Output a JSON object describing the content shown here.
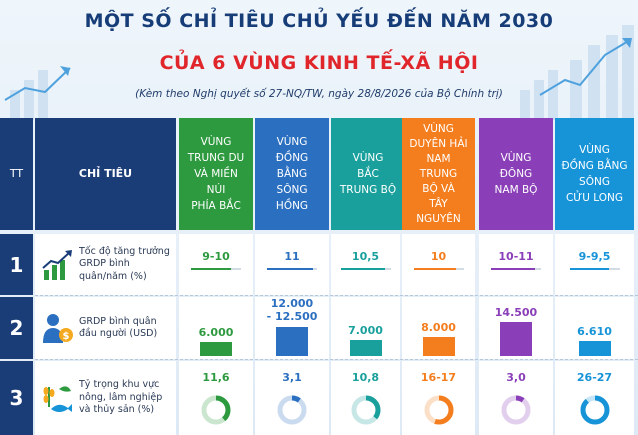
{
  "title_line1": "MỘT SỐ CHỈ TIÊU CHỦ YẾU ĐẾN NĂM 2030",
  "title_line2": "CỦA 6 VÙNG KINH TẾ-XÃ HỘI",
  "subtitle": "(Kèm theo Nghị quyết số 27-NQ/TW, ngày 28/8/2026 của Bộ Chính trị)",
  "header": {
    "tt": "TT",
    "chi_tieu": "CHỈ TIÊU"
  },
  "regions": [
    {
      "name": "Vùng Trung du và miền núi phía Bắc",
      "label": "VÙNG TRUNG DU VÀ MIỀN NÚI PHÍA BẮC",
      "color": "#2e9a3f",
      "line1": "VÙNG",
      "line2": "TRUNG DU",
      "line3": "VÀ MIỀN NÚI",
      "line4": "PHÍA BẮC"
    },
    {
      "name": "Vùng Đồng bằng sông Hồng",
      "color": "#2b6fc0",
      "line1": "VÙNG",
      "line2": "ĐỒNG BẰNG",
      "line3": "SÔNG HỒNG",
      "line4": ""
    },
    {
      "name": "Vùng Bắc Trung Bộ",
      "color": "#1aa09c",
      "line1": "VÙNG",
      "line2": "BẮC",
      "line3": "TRUNG BỘ",
      "line4": ""
    },
    {
      "name": "Vùng Duyên hải Nam Trung Bộ và Tây Nguyên",
      "color": "#f47e1e",
      "line1": "VÙNG",
      "line2": "DUYÊN HẢI",
      "line3": "NAM TRUNG",
      "line4": "BỘ VÀ",
      "line5": "TÂY NGUYÊN"
    },
    {
      "name": "Vùng Đông Nam Bộ",
      "color": "#8a3fb8",
      "line1": "VÙNG",
      "line2": "ĐÔNG",
      "line3": "NAM BỘ",
      "line4": ""
    },
    {
      "name": "Vùng Đồng bằng sông Cửu Long",
      "color": "#1793d8",
      "line1": "VÙNG",
      "line2": "ĐỒNG BẰNG",
      "line3": "SÔNG",
      "line4": "CỬU LONG"
    }
  ],
  "rows": [
    {
      "tt": "1",
      "label": "Tốc độ tăng trưởng GRDP bình quân/năm (%)",
      "icon": "growth-chart-icon"
    },
    {
      "tt": "2",
      "label": "GRDP bình quân đầu người (USD)",
      "icon": "person-money-icon"
    },
    {
      "tt": "3",
      "label": "Tỷ trọng khu vực nông, lâm nghiệp và thủy sản (%)",
      "icon": "agriculture-fish-icon"
    }
  ],
  "chart_data": {
    "type": "table",
    "columns": [
      "Vùng Trung du và miền núi phía Bắc",
      "Vùng Đồng bằng sông Hồng",
      "Vùng Bắc Trung Bộ",
      "Vùng Duyên hải Nam Trung Bộ và Tây Nguyên",
      "Vùng Đông Nam Bộ",
      "Vùng Đồng bằng sông Cửu Long"
    ],
    "series": [
      {
        "name": "Tốc độ tăng trưởng GRDP bình quân/năm (%)",
        "values": [
          "9-10",
          "11",
          "10,5",
          "10",
          "10-11",
          "9-9,5"
        ],
        "numeric": [
          9.5,
          11,
          10.5,
          10,
          10.5,
          9.25
        ]
      },
      {
        "name": "GRDP bình quân đầu người (USD)",
        "values": [
          "6.000",
          "12.000\n- 12.500",
          "7.000",
          "8.000",
          "14.500",
          "6.610"
        ],
        "numeric": [
          6000,
          12250,
          7000,
          8000,
          14500,
          6610
        ]
      },
      {
        "name": "Tỷ trọng khu vực nông, lâm nghiệp và thủy sản (%)",
        "values": [
          "11,6",
          "3,1",
          "10,8",
          "16-17",
          "3,0",
          "26-27"
        ],
        "numeric": [
          11.6,
          3.1,
          10.8,
          16.5,
          3.0,
          26.5
        ]
      }
    ]
  }
}
